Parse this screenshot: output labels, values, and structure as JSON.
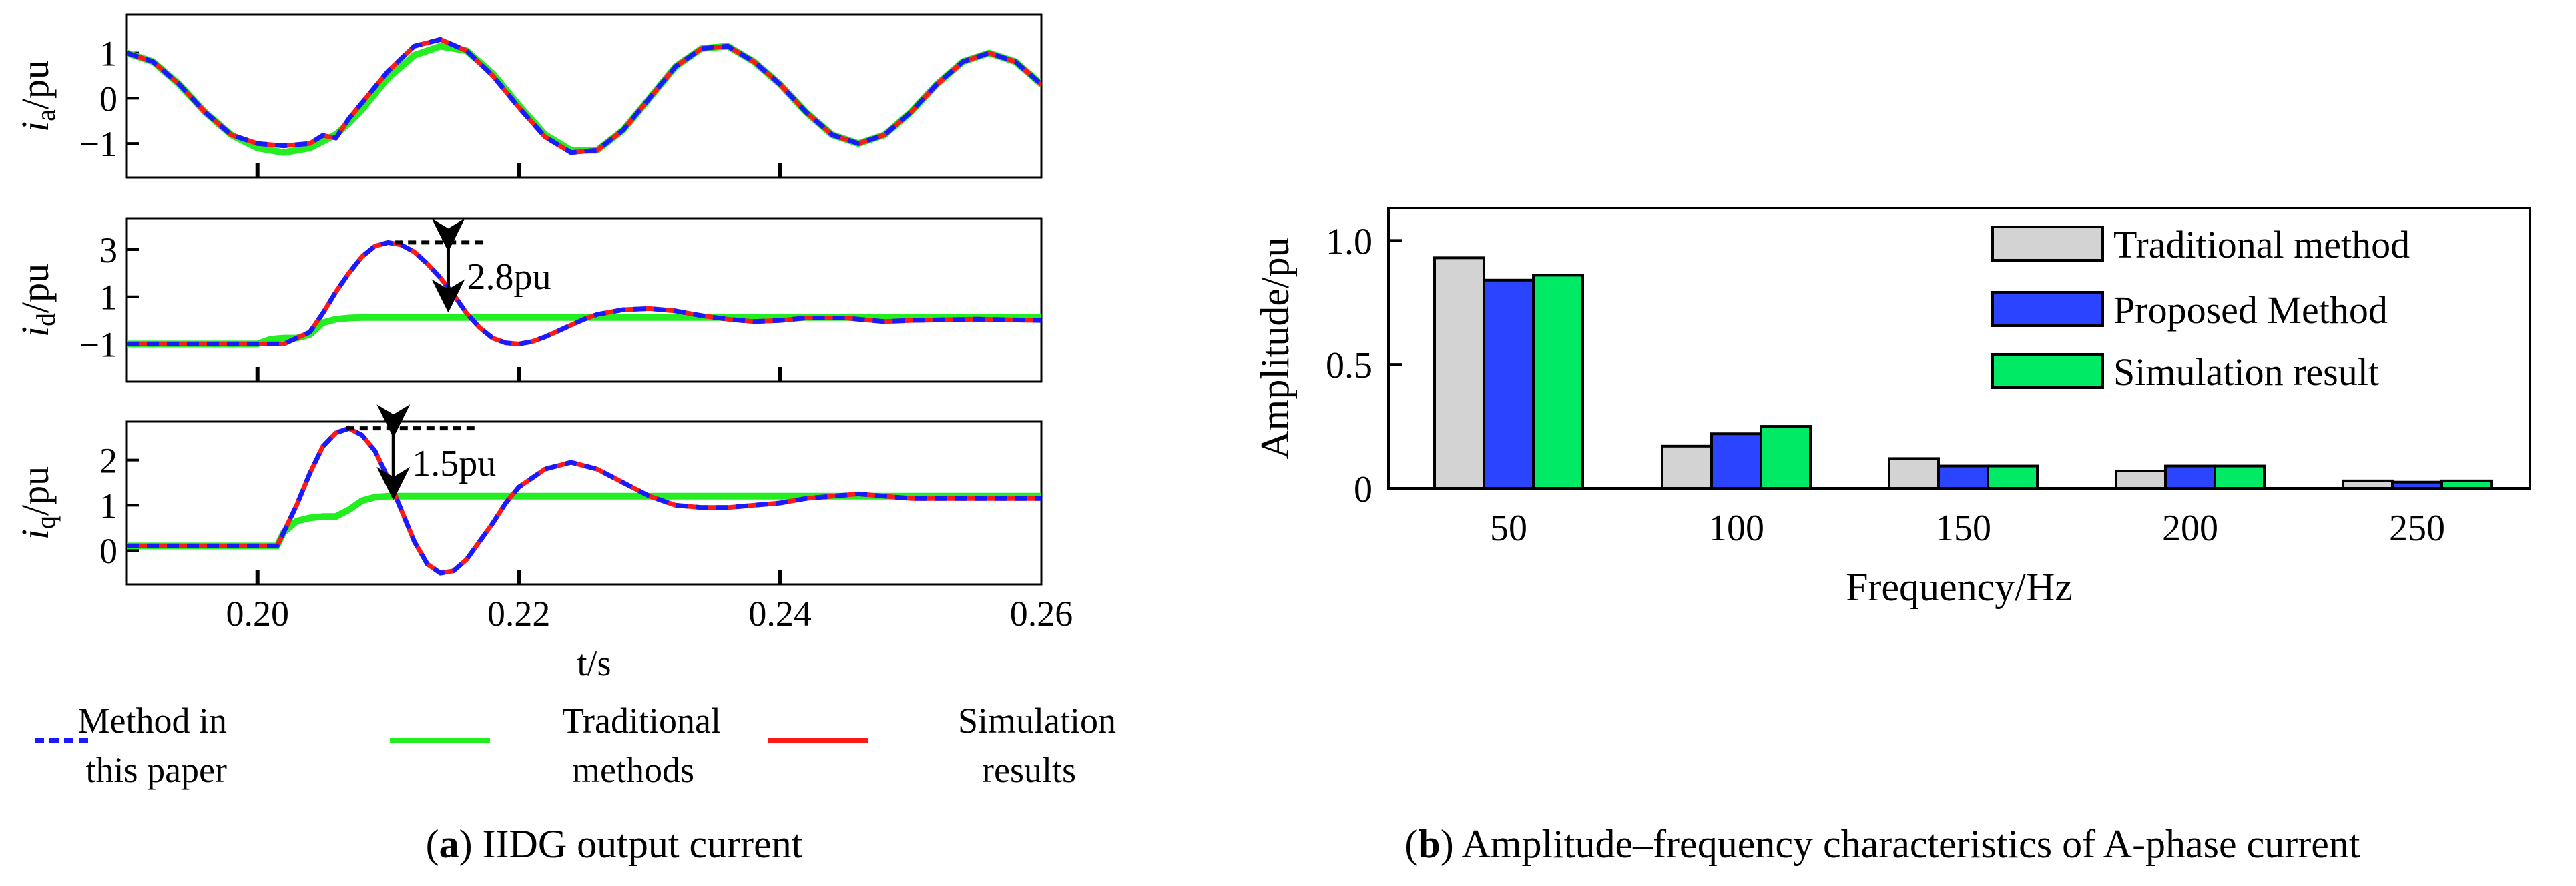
{
  "chart_data": [
    {
      "type": "line",
      "panel_caption": {
        "letter": "a",
        "text": " IIDG output current"
      },
      "xlabel": "t/s",
      "xlim": [
        0.19,
        0.26
      ],
      "x_ticks": [
        0.2,
        0.22,
        0.24,
        0.26
      ],
      "x_tick_labels": [
        "0.20",
        "0.22",
        "0.24",
        "0.26"
      ],
      "legend": {
        "entries": [
          {
            "name": "Method in this paper",
            "line1": "Method in",
            "line2": "this paper",
            "color": "#1a1aff",
            "dash": true
          },
          {
            "name": "Traditional methods",
            "line1": "Traditional",
            "line2": "methods",
            "color": "#22ee22",
            "dash": false
          },
          {
            "name": "Simulation results",
            "line1": "Simulation",
            "line2": "results",
            "color": "#ff1a1a",
            "dash": false
          }
        ]
      },
      "subplots": [
        {
          "ylabel": {
            "main": "i",
            "sub": "a",
            "unit": "/pu"
          },
          "ylim": [
            -1.75,
            1.85
          ],
          "y_ticks": [
            1,
            0,
            -1
          ],
          "y_tick_labels": [
            "1",
            "0",
            "−1"
          ],
          "series": [
            {
              "name": "Method in this paper",
              "x": [
                0.19,
                0.192,
                0.194,
                0.196,
                0.198,
                0.2,
                0.202,
                0.204,
                0.205,
                0.206,
                0.207,
                0.208,
                0.21,
                0.212,
                0.214,
                0.216,
                0.218,
                0.22,
                0.222,
                0.224,
                0.226,
                0.228,
                0.23,
                0.232,
                0.234,
                0.236,
                0.238,
                0.24,
                0.242,
                0.244,
                0.246,
                0.248,
                0.25,
                0.252,
                0.254,
                0.256,
                0.258,
                0.26
              ],
              "y": [
                1.0,
                0.81,
                0.31,
                -0.31,
                -0.81,
                -1.0,
                -1.05,
                -1.0,
                -0.82,
                -0.88,
                -0.45,
                -0.1,
                0.6,
                1.15,
                1.3,
                1.05,
                0.5,
                -0.2,
                -0.85,
                -1.2,
                -1.15,
                -0.7,
                0.0,
                0.7,
                1.1,
                1.15,
                0.81,
                0.31,
                -0.31,
                -0.81,
                -1.0,
                -0.81,
                -0.31,
                0.31,
                0.81,
                1.0,
                0.81,
                0.31
              ]
            },
            {
              "name": "Traditional methods",
              "x": [
                0.19,
                0.192,
                0.194,
                0.196,
                0.198,
                0.2,
                0.202,
                0.204,
                0.205,
                0.206,
                0.207,
                0.208,
                0.21,
                0.212,
                0.214,
                0.216,
                0.218,
                0.22,
                0.222,
                0.224,
                0.226,
                0.228,
                0.23,
                0.232,
                0.234,
                0.236,
                0.238,
                0.24,
                0.242,
                0.244,
                0.246,
                0.248,
                0.25,
                0.252,
                0.254,
                0.256,
                0.258,
                0.26
              ],
              "y": [
                1.0,
                0.81,
                0.31,
                -0.31,
                -0.81,
                -1.1,
                -1.2,
                -1.1,
                -0.95,
                -0.8,
                -0.55,
                -0.25,
                0.45,
                0.95,
                1.15,
                1.05,
                0.55,
                -0.15,
                -0.8,
                -1.15,
                -1.15,
                -0.7,
                0.0,
                0.7,
                1.1,
                1.15,
                0.81,
                0.31,
                -0.31,
                -0.81,
                -1.0,
                -0.81,
                -0.31,
                0.31,
                0.81,
                1.0,
                0.81,
                0.31
              ]
            },
            {
              "name": "Simulation results",
              "x": [
                0.19,
                0.192,
                0.194,
                0.196,
                0.198,
                0.2,
                0.202,
                0.204,
                0.205,
                0.206,
                0.207,
                0.208,
                0.21,
                0.212,
                0.214,
                0.216,
                0.218,
                0.22,
                0.222,
                0.224,
                0.226,
                0.228,
                0.23,
                0.232,
                0.234,
                0.236,
                0.238,
                0.24,
                0.242,
                0.244,
                0.246,
                0.248,
                0.25,
                0.252,
                0.254,
                0.256,
                0.258,
                0.26
              ],
              "y": [
                1.0,
                0.81,
                0.31,
                -0.31,
                -0.81,
                -1.0,
                -1.05,
                -1.0,
                -0.82,
                -0.88,
                -0.45,
                -0.1,
                0.6,
                1.15,
                1.3,
                1.05,
                0.5,
                -0.2,
                -0.85,
                -1.2,
                -1.15,
                -0.7,
                0.0,
                0.7,
                1.1,
                1.15,
                0.81,
                0.31,
                -0.31,
                -0.81,
                -1.0,
                -0.81,
                -0.31,
                0.31,
                0.81,
                1.0,
                0.81,
                0.31
              ]
            }
          ]
        },
        {
          "ylabel": {
            "main": "i",
            "sub": "d",
            "unit": "/pu"
          },
          "ylim": [
            -2.6,
            4.3
          ],
          "y_ticks": [
            3,
            1,
            -1
          ],
          "y_tick_labels": [
            "3",
            "1",
            "−1"
          ],
          "annotation": {
            "label": "2.8pu",
            "peak_x": 0.2105,
            "peak_y": 3.3,
            "level_y": 0.5,
            "line_x_end": 0.2175,
            "arrow_x": 0.2146
          },
          "series": [
            {
              "name": "Method in this paper",
              "x": [
                0.19,
                0.195,
                0.2,
                0.202,
                0.204,
                0.205,
                0.206,
                0.207,
                0.208,
                0.209,
                0.21,
                0.211,
                0.212,
                0.213,
                0.214,
                0.215,
                0.216,
                0.217,
                0.218,
                0.219,
                0.22,
                0.221,
                0.222,
                0.223,
                0.224,
                0.225,
                0.226,
                0.228,
                0.23,
                0.232,
                0.234,
                0.236,
                0.238,
                0.24,
                0.242,
                0.245,
                0.248,
                0.25,
                0.255,
                0.26
              ],
              "y": [
                -1.0,
                -1.0,
                -1.0,
                -1.0,
                -0.5,
                0.3,
                1.2,
                2.0,
                2.7,
                3.15,
                3.3,
                3.2,
                2.9,
                2.4,
                1.8,
                1.1,
                0.3,
                -0.3,
                -0.75,
                -0.95,
                -1.0,
                -0.9,
                -0.7,
                -0.45,
                -0.2,
                0.05,
                0.25,
                0.45,
                0.5,
                0.4,
                0.2,
                0.05,
                -0.05,
                0.0,
                0.1,
                0.1,
                -0.05,
                0.0,
                0.05,
                0.0
              ]
            },
            {
              "name": "Traditional methods",
              "x": [
                0.19,
                0.195,
                0.2,
                0.201,
                0.202,
                0.203,
                0.204,
                0.205,
                0.206,
                0.207,
                0.208,
                0.21,
                0.215,
                0.22,
                0.23,
                0.24,
                0.26
              ],
              "y": [
                -1.0,
                -1.0,
                -1.0,
                -0.8,
                -0.75,
                -0.75,
                -0.6,
                -0.1,
                0.05,
                0.1,
                0.12,
                0.12,
                0.12,
                0.12,
                0.12,
                0.12,
                0.12
              ]
            },
            {
              "name": "Simulation results",
              "x": [
                0.19,
                0.195,
                0.2,
                0.202,
                0.204,
                0.205,
                0.206,
                0.207,
                0.208,
                0.209,
                0.21,
                0.211,
                0.212,
                0.213,
                0.214,
                0.215,
                0.216,
                0.217,
                0.218,
                0.219,
                0.22,
                0.221,
                0.222,
                0.223,
                0.224,
                0.225,
                0.226,
                0.228,
                0.23,
                0.232,
                0.234,
                0.236,
                0.238,
                0.24,
                0.242,
                0.245,
                0.248,
                0.25,
                0.255,
                0.26
              ],
              "y": [
                -1.0,
                -1.0,
                -1.0,
                -1.0,
                -0.5,
                0.3,
                1.2,
                2.0,
                2.7,
                3.15,
                3.3,
                3.2,
                2.9,
                2.4,
                1.8,
                1.1,
                0.3,
                -0.3,
                -0.75,
                -0.95,
                -1.0,
                -0.9,
                -0.7,
                -0.45,
                -0.2,
                0.05,
                0.25,
                0.45,
                0.5,
                0.4,
                0.2,
                0.05,
                -0.05,
                0.0,
                0.1,
                0.1,
                -0.05,
                0.0,
                0.05,
                0.0
              ]
            }
          ]
        },
        {
          "ylabel": {
            "main": "i",
            "sub": "q",
            "unit": "/pu"
          },
          "ylim": [
            -0.75,
            2.85
          ],
          "y_ticks": [
            2,
            1,
            0
          ],
          "y_tick_labels": [
            "2",
            "1",
            "0"
          ],
          "annotation": {
            "label": "1.5pu",
            "peak_x": 0.2068,
            "peak_y": 2.7,
            "level_y": 1.2,
            "line_x_end": 0.2168,
            "arrow_x": 0.2104
          },
          "series": [
            {
              "name": "Method in this paper",
              "x": [
                0.19,
                0.195,
                0.2,
                0.2015,
                0.203,
                0.204,
                0.205,
                0.206,
                0.207,
                0.208,
                0.209,
                0.21,
                0.211,
                0.212,
                0.213,
                0.214,
                0.215,
                0.216,
                0.217,
                0.218,
                0.219,
                0.22,
                0.222,
                0.224,
                0.226,
                0.228,
                0.23,
                0.232,
                0.234,
                0.236,
                0.238,
                0.24,
                0.242,
                0.244,
                0.246,
                0.248,
                0.25,
                0.255,
                0.26
              ],
              "y": [
                0.1,
                0.1,
                0.1,
                0.1,
                1.0,
                1.7,
                2.3,
                2.6,
                2.7,
                2.55,
                2.2,
                1.6,
                0.9,
                0.2,
                -0.3,
                -0.5,
                -0.45,
                -0.2,
                0.2,
                0.6,
                1.05,
                1.4,
                1.8,
                1.95,
                1.8,
                1.5,
                1.2,
                1.0,
                0.95,
                0.95,
                1.0,
                1.05,
                1.15,
                1.2,
                1.25,
                1.2,
                1.15,
                1.15,
                1.15
              ]
            },
            {
              "name": "Traditional methods",
              "x": [
                0.19,
                0.195,
                0.2,
                0.2015,
                0.202,
                0.203,
                0.204,
                0.205,
                0.206,
                0.207,
                0.208,
                0.209,
                0.21,
                0.212,
                0.215,
                0.22,
                0.23,
                0.24,
                0.26
              ],
              "y": [
                0.1,
                0.1,
                0.1,
                0.1,
                0.4,
                0.65,
                0.72,
                0.75,
                0.75,
                0.9,
                1.1,
                1.18,
                1.2,
                1.2,
                1.2,
                1.2,
                1.2,
                1.2,
                1.2
              ]
            },
            {
              "name": "Simulation results",
              "x": [
                0.19,
                0.195,
                0.2,
                0.2015,
                0.203,
                0.204,
                0.205,
                0.206,
                0.207,
                0.208,
                0.209,
                0.21,
                0.211,
                0.212,
                0.213,
                0.214,
                0.215,
                0.216,
                0.217,
                0.218,
                0.219,
                0.22,
                0.222,
                0.224,
                0.226,
                0.228,
                0.23,
                0.232,
                0.234,
                0.236,
                0.238,
                0.24,
                0.242,
                0.244,
                0.246,
                0.248,
                0.25,
                0.255,
                0.26
              ],
              "y": [
                0.1,
                0.1,
                0.1,
                0.1,
                1.0,
                1.7,
                2.3,
                2.6,
                2.7,
                2.55,
                2.2,
                1.6,
                0.9,
                0.2,
                -0.3,
                -0.5,
                -0.45,
                -0.2,
                0.2,
                0.6,
                1.05,
                1.4,
                1.8,
                1.95,
                1.8,
                1.5,
                1.2,
                1.0,
                0.95,
                0.95,
                1.0,
                1.05,
                1.15,
                1.2,
                1.25,
                1.2,
                1.15,
                1.15,
                1.15
              ]
            }
          ]
        }
      ]
    },
    {
      "type": "bar",
      "panel_caption": {
        "letter": "b",
        "text": " Amplitude–frequency characteristics of A-phase current"
      },
      "xlabel": "Frequency/Hz",
      "ylabel": "Amplitude/pu",
      "categories": [
        "50",
        "100",
        "150",
        "200",
        "250"
      ],
      "ylim": [
        0,
        1.13
      ],
      "y_ticks": [
        0,
        0.5,
        1.0
      ],
      "y_tick_labels": [
        "0",
        "0.5",
        "1.0"
      ],
      "legend_position": "top-right",
      "series": [
        {
          "name": "Traditional method",
          "color": "#d3d3d3",
          "values": [
            0.93,
            0.17,
            0.12,
            0.07,
            0.03
          ]
        },
        {
          "name": "Proposed Method",
          "color": "#2b44ff",
          "values": [
            0.84,
            0.22,
            0.09,
            0.09,
            0.025
          ]
        },
        {
          "name": "Simulation result",
          "color": "#00ea66",
          "values": [
            0.86,
            0.25,
            0.09,
            0.09,
            0.03
          ]
        }
      ]
    }
  ]
}
